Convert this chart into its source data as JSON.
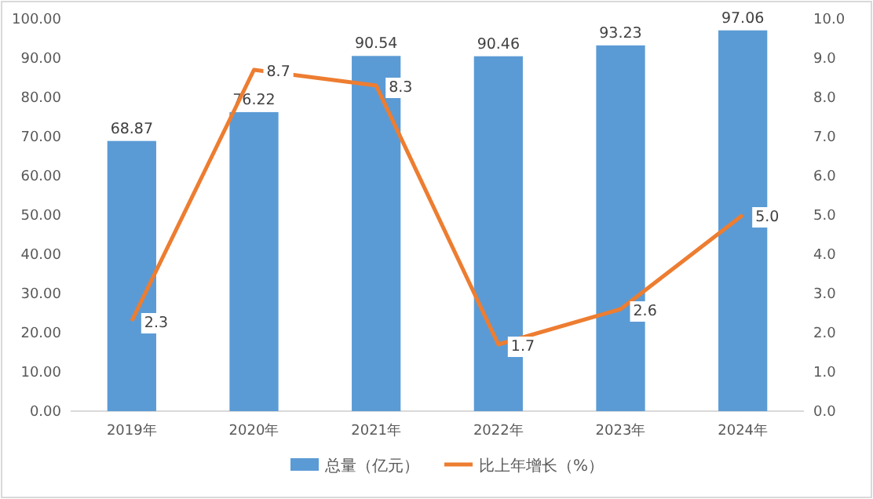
{
  "chart_data": {
    "type": "bar",
    "categories": [
      "2019年",
      "2020年",
      "2021年",
      "2022年",
      "2023年",
      "2024年"
    ],
    "series": [
      {
        "name": "总量（亿元）",
        "color": "#5b9bd5",
        "values": [
          68.87,
          76.22,
          90.54,
          90.46,
          93.23,
          97.06
        ],
        "value_labels": [
          "68.87",
          "76.22",
          "90.54",
          "90.46",
          "93.23",
          "97.06"
        ]
      },
      {
        "name": "比上年增长（%）",
        "type": "line",
        "axis": "y2",
        "color": "#ed7d31",
        "values": [
          2.3,
          8.7,
          8.3,
          1.7,
          2.6,
          5.0
        ],
        "value_labels": [
          "2.3",
          "8.7",
          "8.3",
          "1.7",
          "2.6",
          "5.0"
        ]
      }
    ],
    "ylim": [
      0,
      100
    ],
    "yticks": [
      {
        "value": 0,
        "label": "0.00"
      },
      {
        "value": 10,
        "label": "10.00"
      },
      {
        "value": 20,
        "label": "20.00"
      },
      {
        "value": 30,
        "label": "30.00"
      },
      {
        "value": 40,
        "label": "40.00"
      },
      {
        "value": 50,
        "label": "50.00"
      },
      {
        "value": 60,
        "label": "60.00"
      },
      {
        "value": 70,
        "label": "70.00"
      },
      {
        "value": 80,
        "label": "80.00"
      },
      {
        "value": 90,
        "label": "90.00"
      },
      {
        "value": 100,
        "label": "100.00"
      }
    ],
    "y2lim": [
      0,
      10
    ],
    "y2ticks": [
      {
        "value": 0,
        "label": "0.0"
      },
      {
        "value": 1,
        "label": "1.0"
      },
      {
        "value": 2,
        "label": "2.0"
      },
      {
        "value": 3,
        "label": "3.0"
      },
      {
        "value": 4,
        "label": "4.0"
      },
      {
        "value": 5,
        "label": "5.0"
      },
      {
        "value": 6,
        "label": "6.0"
      },
      {
        "value": 7,
        "label": "7.0"
      },
      {
        "value": 8,
        "label": "8.0"
      },
      {
        "value": 9,
        "label": "9.0"
      },
      {
        "value": 10,
        "label": "10.0"
      }
    ],
    "legend": "bottom",
    "marker": "none",
    "line_style": "solid"
  }
}
